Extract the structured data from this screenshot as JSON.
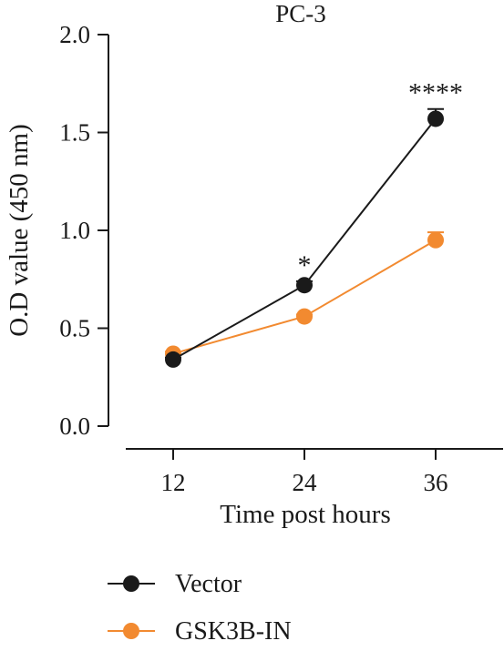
{
  "chart_data": {
    "type": "line",
    "title": "PC-3",
    "xlabel": "Time post hours",
    "ylabel": "O.D value (450 nm)",
    "x": [
      12,
      24,
      36
    ],
    "x_tick_labels": [
      "12",
      "24",
      "36"
    ],
    "ylim": [
      0,
      2.0
    ],
    "y_ticks": [
      0.0,
      0.5,
      1.0,
      1.5,
      2.0
    ],
    "y_tick_labels": [
      "0.0",
      "0.5",
      "1.0",
      "1.5",
      "2.0"
    ],
    "grid": false,
    "legend_position": "bottom-left",
    "series": [
      {
        "name": "Vector",
        "color": "#1a1a1a",
        "values": [
          0.34,
          0.72,
          1.57
        ],
        "error": [
          0.01,
          0.02,
          0.05
        ]
      },
      {
        "name": "GSK3B-IN",
        "color": "#f28a30",
        "values": [
          0.37,
          0.56,
          0.95
        ],
        "error": [
          0.01,
          0.01,
          0.04
        ]
      }
    ],
    "annotations": [
      {
        "x": 24,
        "text": "*"
      },
      {
        "x": 36,
        "text": "****"
      }
    ]
  }
}
